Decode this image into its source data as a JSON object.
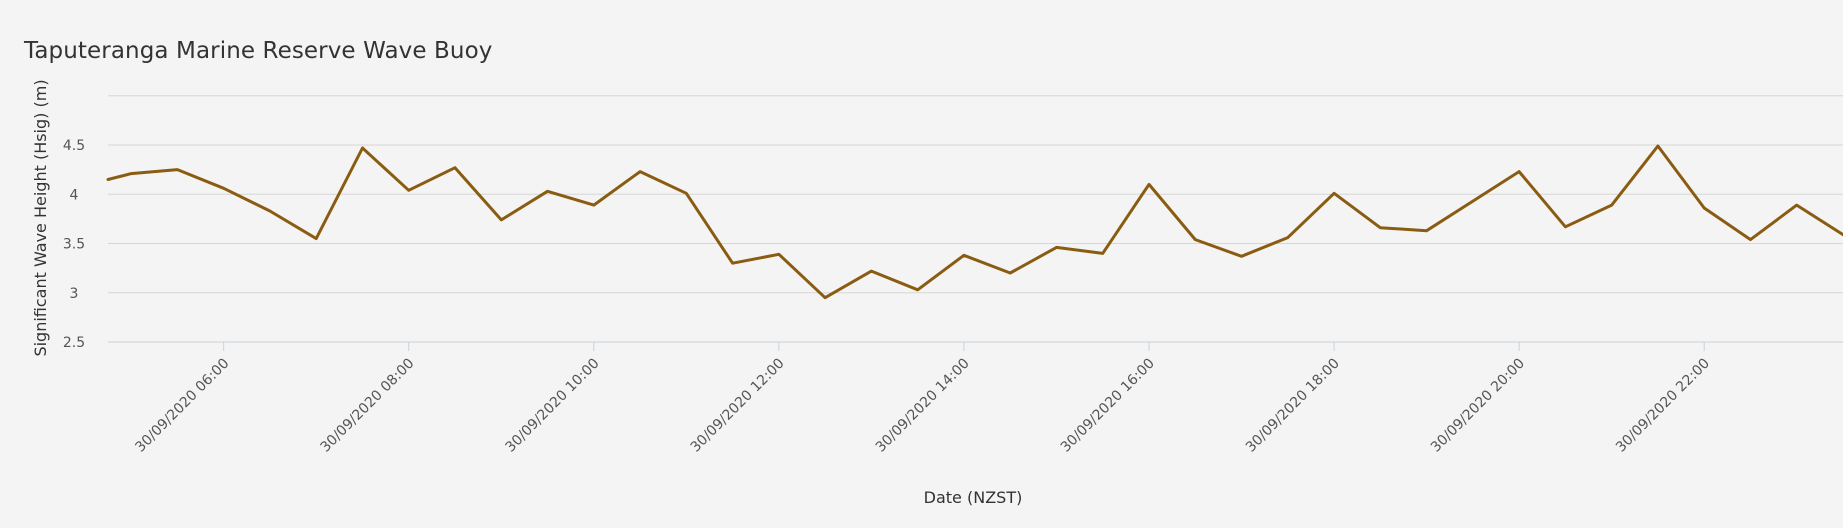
{
  "title": "Taputeranga Marine Reserve Wave Buoy",
  "colors": {
    "line": "#8a5c12",
    "grid": "#d6d6d6",
    "background": "#f4f4f4"
  },
  "chart_data": {
    "type": "line",
    "title": "Taputeranga Marine Reserve Wave Buoy",
    "xlabel": "Date (NZST)",
    "ylabel": "Significant Wave Height (Hsig) (m)",
    "ylim": [
      2.5,
      5.0
    ],
    "yticks": [
      2.5,
      3,
      3.5,
      4,
      4.5
    ],
    "xlim": [
      "30/09/2020 04:45",
      "30/09/2020 23:30"
    ],
    "xticks": [
      {
        "label": "30/09/2020 06:00",
        "t": "30/09/2020 06:00"
      },
      {
        "label": "30/09/2020 08:00",
        "t": "30/09/2020 08:00"
      },
      {
        "label": "30/09/2020 10:00",
        "t": "30/09/2020 10:00"
      },
      {
        "label": "30/09/2020 12:00",
        "t": "30/09/2020 12:00"
      },
      {
        "label": "30/09/2020 14:00",
        "t": "30/09/2020 14:00"
      },
      {
        "label": "30/09/2020 16:00",
        "t": "30/09/2020 16:00"
      },
      {
        "label": "30/09/2020 18:00",
        "t": "30/09/2020 18:00"
      },
      {
        "label": "30/09/2020 20:00",
        "t": "30/09/2020 20:00"
      },
      {
        "label": "30/09/2020 22:00",
        "t": "30/09/2020 22:00"
      }
    ],
    "grid": true,
    "series": [
      {
        "x": [
          "30/09/2020 04:45",
          "30/09/2020 05:00",
          "30/09/2020 05:30",
          "30/09/2020 06:00",
          "30/09/2020 06:30",
          "30/09/2020 07:00",
          "30/09/2020 07:30",
          "30/09/2020 08:00",
          "30/09/2020 08:30",
          "30/09/2020 09:00",
          "30/09/2020 09:30",
          "30/09/2020 10:00",
          "30/09/2020 10:30",
          "30/09/2020 11:00",
          "30/09/2020 11:30",
          "30/09/2020 12:00",
          "30/09/2020 12:30",
          "30/09/2020 13:00",
          "30/09/2020 13:30",
          "30/09/2020 14:00",
          "30/09/2020 14:30",
          "30/09/2020 15:00",
          "30/09/2020 15:30",
          "30/09/2020 16:00",
          "30/09/2020 16:30",
          "30/09/2020 17:00",
          "30/09/2020 17:30",
          "30/09/2020 18:00",
          "30/09/2020 18:30",
          "30/09/2020 19:00",
          "30/09/2020 19:30",
          "30/09/2020 20:00",
          "30/09/2020 20:30",
          "30/09/2020 21:00",
          "30/09/2020 21:30",
          "30/09/2020 22:00",
          "30/09/2020 22:30",
          "30/09/2020 23:00",
          "30/09/2020 23:30"
        ],
        "y": [
          4.15,
          4.21,
          4.25,
          4.06,
          3.83,
          3.55,
          4.47,
          4.04,
          4.27,
          3.74,
          4.03,
          3.89,
          4.23,
          4.01,
          3.3,
          3.39,
          2.95,
          3.22,
          3.03,
          3.38,
          3.2,
          3.46,
          3.4,
          4.1,
          3.54,
          3.37,
          3.56,
          4.01,
          3.66,
          3.63,
          3.93,
          4.23,
          3.67,
          3.89,
          4.49,
          3.86,
          3.54,
          3.89,
          3.59
        ]
      }
    ]
  }
}
